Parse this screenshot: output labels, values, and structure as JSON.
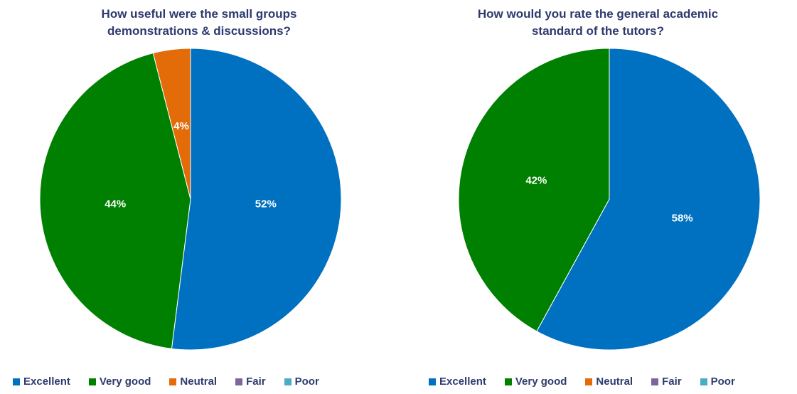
{
  "chart_data": [
    {
      "type": "pie",
      "title_lines": [
        "How useful were the small groups",
        "demonstrations & discussions?"
      ],
      "categories": [
        "Excellent",
        "Very good",
        "Neutral",
        "Fair",
        "Poor"
      ],
      "values": [
        52,
        44,
        4,
        0,
        0
      ],
      "labels": [
        "52%",
        "44%",
        "4%",
        "",
        ""
      ],
      "colors": [
        "#0070c0",
        "#008000",
        "#e36c09",
        "#8064a2",
        "#4bacc6"
      ],
      "start_angle_deg": 0,
      "direction": "clockwise",
      "legend_position": "bottom"
    },
    {
      "type": "pie",
      "title_lines": [
        "How would you rate the general academic",
        "standard of the tutors?"
      ],
      "categories": [
        "Excellent",
        "Very good",
        "Neutral",
        "Fair",
        "Poor"
      ],
      "values": [
        58,
        42,
        0,
        0,
        0
      ],
      "labels": [
        "58%",
        "42%",
        "",
        "",
        ""
      ],
      "colors": [
        "#0070c0",
        "#008000",
        "#e36c09",
        "#8064a2",
        "#4bacc6"
      ],
      "start_angle_deg": 0,
      "direction": "clockwise",
      "legend_position": "bottom"
    }
  ]
}
